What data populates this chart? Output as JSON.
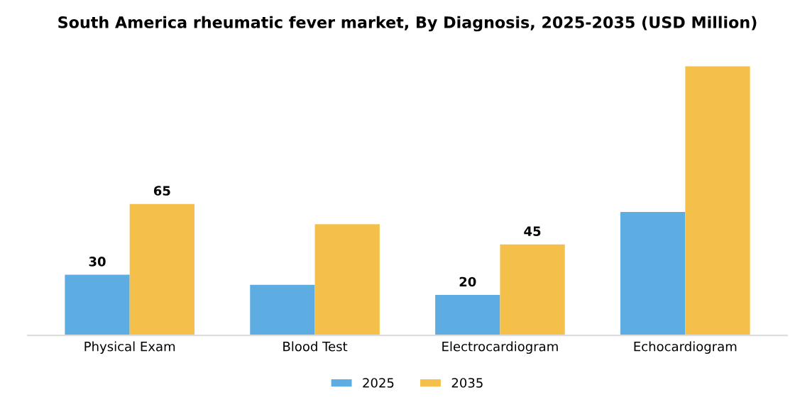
{
  "chart_data": {
    "type": "bar",
    "title": "South America rheumatic fever market, By Diagnosis, 2025-2035 (USD Million)",
    "categories": [
      "Physical Exam",
      "Blood Test",
      "Electrocardiogram",
      "Echocardiogram"
    ],
    "series": [
      {
        "name": "2025",
        "color": "#5dade2",
        "values": [
          30,
          25,
          20,
          61
        ],
        "value_labels": [
          "30",
          null,
          "20",
          null
        ]
      },
      {
        "name": "2035",
        "color": "#f5c04a",
        "values": [
          65,
          55,
          45,
          133
        ],
        "value_labels": [
          "65",
          null,
          "45",
          null
        ]
      }
    ],
    "grid": false,
    "legend": "bottom"
  }
}
